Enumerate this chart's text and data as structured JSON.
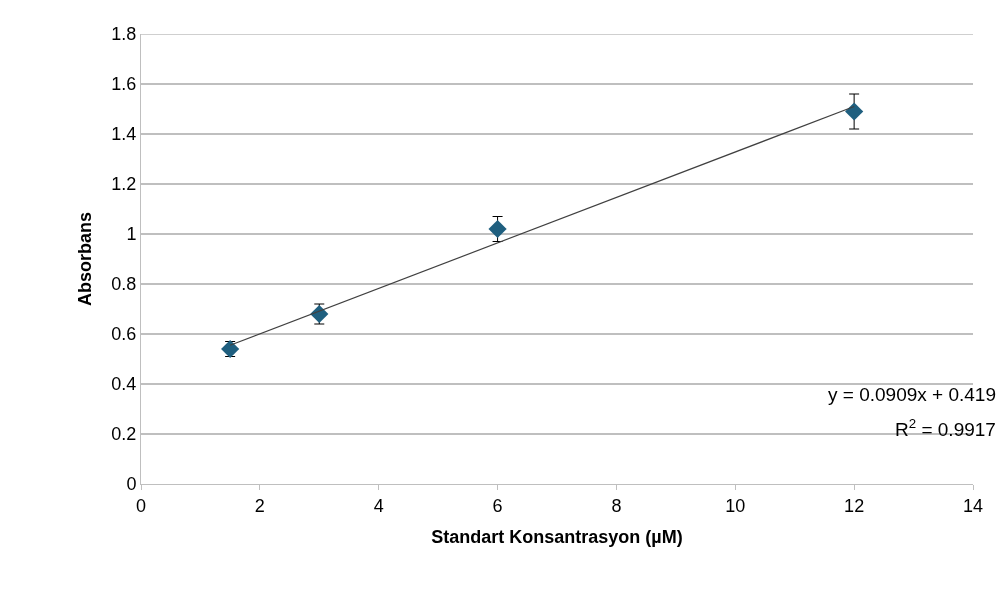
{
  "chart_data": {
    "type": "scatter",
    "xlabel": "Standart Konsantrasyon (µM)",
    "ylabel": "Absorbans",
    "series": [
      {
        "color": "#1f5f7f",
        "x": [
          1.5,
          3,
          6,
          12
        ],
        "values": [
          0.54,
          0.68,
          1.02,
          1.49
        ],
        "errors": [
          0.03,
          0.04,
          0.05,
          0.07
        ],
        "marker": "diamond"
      },
      {
        "type": "line",
        "color": "#404040",
        "x": [
          1.5,
          12
        ],
        "values": [
          0.555,
          1.51
        ],
        "marker": "none",
        "line_style": "solid"
      }
    ],
    "annotations": [
      "y = 0.0909x + 0.419",
      "R$^{2}$ = 0.9917"
    ],
    "xlim": [
      0,
      14
    ],
    "xticks": [
      0,
      2,
      4,
      6,
      8,
      10,
      12,
      14
    ],
    "ylim": [
      0,
      1.8
    ],
    "yticks": [
      0,
      0.2,
      0.4,
      0.6,
      0.8,
      1,
      1.2,
      1.4,
      1.6,
      1.8
    ],
    "grid": "y",
    "legend": false
  }
}
